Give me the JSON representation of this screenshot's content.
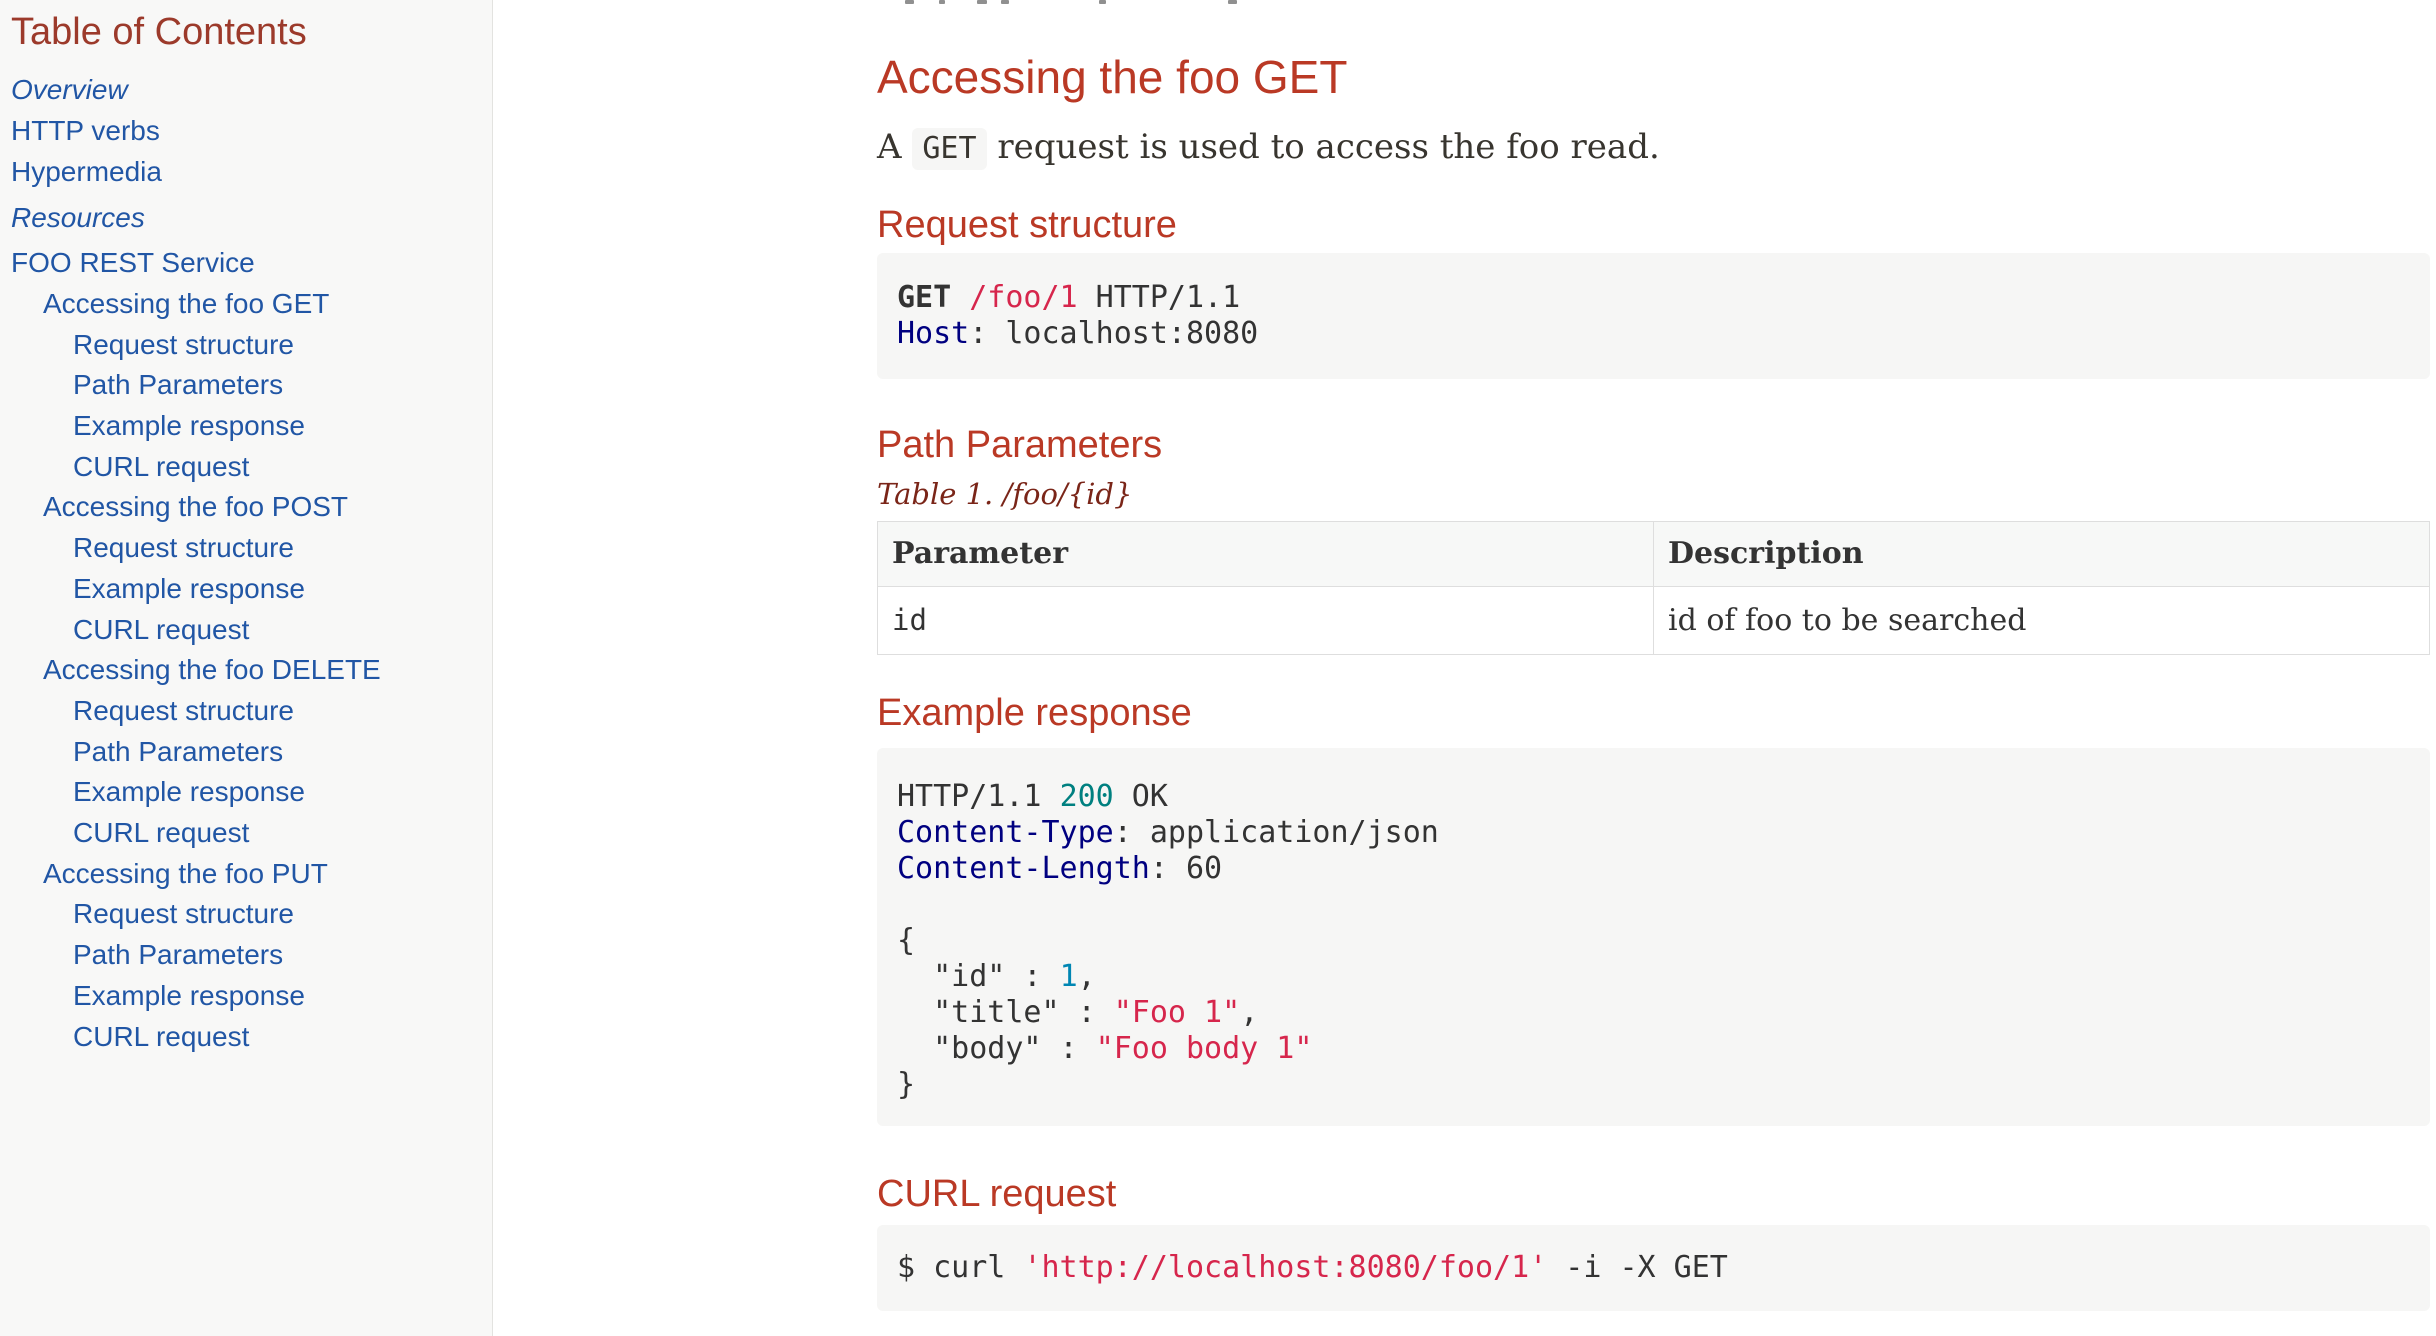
{
  "colors": {
    "heading_red": "#ba3925",
    "toc_title_red": "#9c3a2b",
    "caption_red": "#7a2518",
    "link_blue": "#2156a5",
    "sidebar_bg": "#f8f8f7",
    "code_bg": "#f6f6f5",
    "table_header_bg": "#f7f8f7",
    "code_attribute": "#000080",
    "code_number_teal": "#008080",
    "code_number_blue": "#0086b3",
    "code_string": "#d6264c"
  },
  "toc": {
    "title": "Table of Contents",
    "items": [
      {
        "label": "Overview",
        "level": 0,
        "italic": true,
        "gap": false
      },
      {
        "label": "HTTP verbs",
        "level": 0,
        "italic": false,
        "gap": false
      },
      {
        "label": "Hypermedia",
        "level": 0,
        "italic": false,
        "gap": false
      },
      {
        "label": "Resources",
        "level": 0,
        "italic": true,
        "gap": true
      },
      {
        "label": "FOO REST Service",
        "level": 0,
        "italic": false,
        "gap": true
      },
      {
        "label": "Accessing the foo GET",
        "level": 1,
        "italic": false,
        "gap": false
      },
      {
        "label": "Request structure",
        "level": 2,
        "italic": false,
        "gap": false
      },
      {
        "label": "Path Parameters",
        "level": 2,
        "italic": false,
        "gap": false
      },
      {
        "label": "Example response",
        "level": 2,
        "italic": false,
        "gap": false
      },
      {
        "label": "CURL request",
        "level": 2,
        "italic": false,
        "gap": false
      },
      {
        "label": "Accessing the foo POST",
        "level": 1,
        "italic": false,
        "gap": false
      },
      {
        "label": "Request structure",
        "level": 2,
        "italic": false,
        "gap": false
      },
      {
        "label": "Example response",
        "level": 2,
        "italic": false,
        "gap": false
      },
      {
        "label": "CURL request",
        "level": 2,
        "italic": false,
        "gap": false
      },
      {
        "label": "Accessing the foo DELETE",
        "level": 1,
        "italic": false,
        "gap": false
      },
      {
        "label": "Request structure",
        "level": 2,
        "italic": false,
        "gap": false
      },
      {
        "label": "Path Parameters",
        "level": 2,
        "italic": false,
        "gap": false
      },
      {
        "label": "Example response",
        "level": 2,
        "italic": false,
        "gap": false
      },
      {
        "label": "CURL request",
        "level": 2,
        "italic": false,
        "gap": false
      },
      {
        "label": "Accessing the foo PUT",
        "level": 1,
        "italic": false,
        "gap": false
      },
      {
        "label": "Request structure",
        "level": 2,
        "italic": false,
        "gap": false
      },
      {
        "label": "Path Parameters",
        "level": 2,
        "italic": false,
        "gap": false
      },
      {
        "label": "Example response",
        "level": 2,
        "italic": false,
        "gap": false
      },
      {
        "label": "CURL request",
        "level": 2,
        "italic": false,
        "gap": false
      }
    ]
  },
  "main": {
    "section_title": "Accessing the foo GET",
    "intro": {
      "pre": "A ",
      "code": "GET",
      "post": " request is used to access the foo read."
    },
    "request_structure": {
      "heading": "Request structure",
      "code_lines": [
        [
          {
            "c": "k",
            "t": "GET"
          },
          {
            "c": "p",
            "t": " "
          },
          {
            "c": "s",
            "t": "/foo/1"
          },
          {
            "c": "p",
            "t": " HTTP/1.1"
          }
        ],
        [
          {
            "c": "a",
            "t": "Host"
          },
          {
            "c": "p",
            "t": ": localhost:8080"
          }
        ]
      ]
    },
    "path_parameters": {
      "heading": "Path Parameters",
      "caption": "Table 1. /foo/{id}",
      "table": {
        "headers": [
          "Parameter",
          "Description"
        ],
        "rows": [
          [
            "id",
            "id of foo to be searched"
          ]
        ]
      }
    },
    "example_response": {
      "heading": "Example response",
      "code_lines": [
        [
          {
            "c": "p",
            "t": "HTTP/1.1 "
          },
          {
            "c": "n",
            "t": "200"
          },
          {
            "c": "p",
            "t": " OK"
          }
        ],
        [
          {
            "c": "a",
            "t": "Content-Type"
          },
          {
            "c": "p",
            "t": ": application/json"
          }
        ],
        [
          {
            "c": "a",
            "t": "Content-Length"
          },
          {
            "c": "p",
            "t": ": 60"
          }
        ],
        [],
        [
          {
            "c": "p",
            "t": "{"
          }
        ],
        [
          {
            "c": "p",
            "t": "  \"id\" : "
          },
          {
            "c": "j",
            "t": "1"
          },
          {
            "c": "p",
            "t": ","
          }
        ],
        [
          {
            "c": "p",
            "t": "  \"title\" : "
          },
          {
            "c": "s",
            "t": "\"Foo 1\""
          },
          {
            "c": "p",
            "t": ","
          }
        ],
        [
          {
            "c": "p",
            "t": "  \"body\" : "
          },
          {
            "c": "s",
            "t": "\"Foo body 1\""
          }
        ],
        [
          {
            "c": "p",
            "t": "}"
          }
        ]
      ]
    },
    "curl_request": {
      "heading": "CURL request",
      "code_lines": [
        [
          {
            "c": "p",
            "t": "$ curl "
          },
          {
            "c": "s",
            "t": "'http://localhost:8080/foo/1'"
          },
          {
            "c": "p",
            "t": " -i -X GET"
          }
        ]
      ]
    }
  }
}
